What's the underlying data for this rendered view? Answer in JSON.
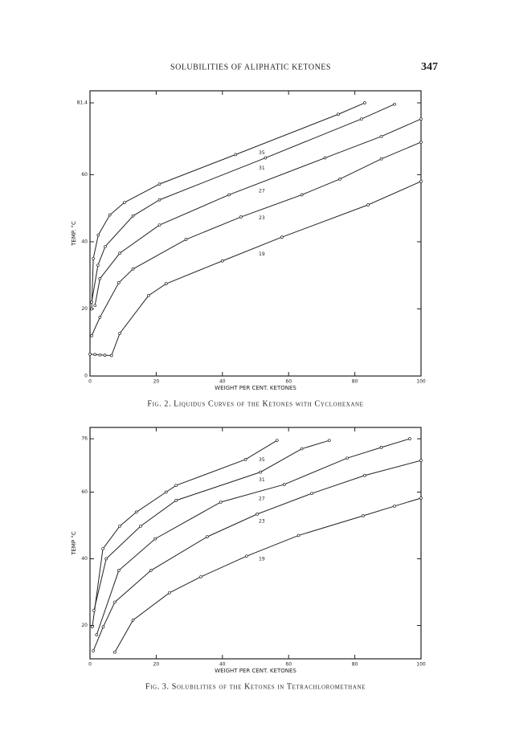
{
  "header": {
    "title": "SOLUBILITIES OF ALIPHATIC KETONES",
    "page": "347"
  },
  "chart_data": [
    {
      "type": "line",
      "caption": "Fig. 2. Liquidus Curves of the Ketones with Cyclohexane",
      "x_label": "WEIGHT PER CENT. KETONES",
      "y_label": "TEMP. °C",
      "xlim": [
        0,
        100
      ],
      "xticks": [
        0,
        20,
        40,
        60,
        80,
        100
      ],
      "ylim": [
        0,
        85
      ],
      "yticks": [
        0,
        20,
        40,
        60,
        81.4
      ],
      "color": "#222222",
      "series": [
        {
          "name": "35",
          "x": [
            0.5,
            1,
            2.5,
            6,
            10.4,
            21,
            44,
            75,
            83
          ],
          "values": [
            20,
            35,
            42,
            48,
            51.7,
            57.2,
            66,
            78,
            81.4
          ]
        },
        {
          "name": "31",
          "x": [
            0.5,
            2.4,
            4.6,
            13,
            21,
            53,
            82,
            92
          ],
          "values": [
            22,
            33,
            38.6,
            47.7,
            52.5,
            65,
            76.6,
            81
          ]
        },
        {
          "name": "27",
          "x": [
            1.5,
            3,
            9,
            21,
            42,
            71,
            88,
            100
          ],
          "values": [
            21,
            29,
            36.6,
            45,
            54,
            65,
            71.4,
            76.6
          ]
        },
        {
          "name": "23",
          "x": [
            0.5,
            3,
            8.7,
            13,
            29,
            45.6,
            64,
            75.5,
            88,
            100
          ],
          "values": [
            12,
            17.5,
            27.8,
            31.9,
            40.7,
            47.4,
            54,
            58.7,
            64.7,
            69.7
          ]
        },
        {
          "name": "19",
          "x": [
            0,
            1.5,
            3,
            4.5,
            6.5,
            9,
            17.7,
            23,
            40,
            58,
            84,
            100
          ],
          "values": [
            6.5,
            6.4,
            6.3,
            6.2,
            6.1,
            12.7,
            24,
            27.5,
            34.3,
            41.4,
            51,
            58
          ]
        }
      ]
    },
    {
      "type": "line",
      "caption": "Fig. 3. Solubilities of the Ketones in Tetrachloromethane",
      "x_label": "WEIGHT PER CENT. KETONES",
      "y_label": "TEMP °C",
      "xlim": [
        0,
        100
      ],
      "xticks": [
        0,
        20,
        40,
        60,
        80,
        100
      ],
      "ylim": [
        10,
        79.4
      ],
      "yticks": [
        20,
        40,
        60,
        76
      ],
      "color": "#222222",
      "series": [
        {
          "name": "35",
          "x": [
            0.7,
            3.9,
            9,
            14,
            23,
            26,
            47,
            56.5
          ],
          "values": [
            19.6,
            43,
            49.8,
            54,
            60,
            62,
            69.8,
            75.5
          ]
        },
        {
          "name": "31",
          "x": [
            1.2,
            4.9,
            15.3,
            26,
            51.5,
            64,
            72.3
          ],
          "values": [
            24.5,
            40,
            49.8,
            57.5,
            66,
            73,
            75.5
          ]
        },
        {
          "name": "27",
          "x": [
            2,
            8.7,
            19.7,
            39.5,
            58.7,
            77.7,
            88,
            96.6
          ],
          "values": [
            17.2,
            36.5,
            46,
            57,
            62.3,
            70.2,
            73.4,
            76
          ]
        },
        {
          "name": "23",
          "x": [
            1,
            4,
            7.5,
            18.4,
            35.4,
            50.5,
            67,
            83,
            100
          ],
          "values": [
            12.4,
            19.6,
            27,
            36.5,
            46.6,
            53.4,
            59.6,
            65,
            69.5
          ]
        },
        {
          "name": "19",
          "x": [
            7.5,
            13,
            24,
            33.5,
            47.3,
            63,
            82.5,
            92,
            100
          ],
          "values": [
            12,
            21.6,
            29.8,
            34.6,
            40.8,
            47,
            52.9,
            55.8,
            58.2
          ]
        }
      ]
    }
  ]
}
